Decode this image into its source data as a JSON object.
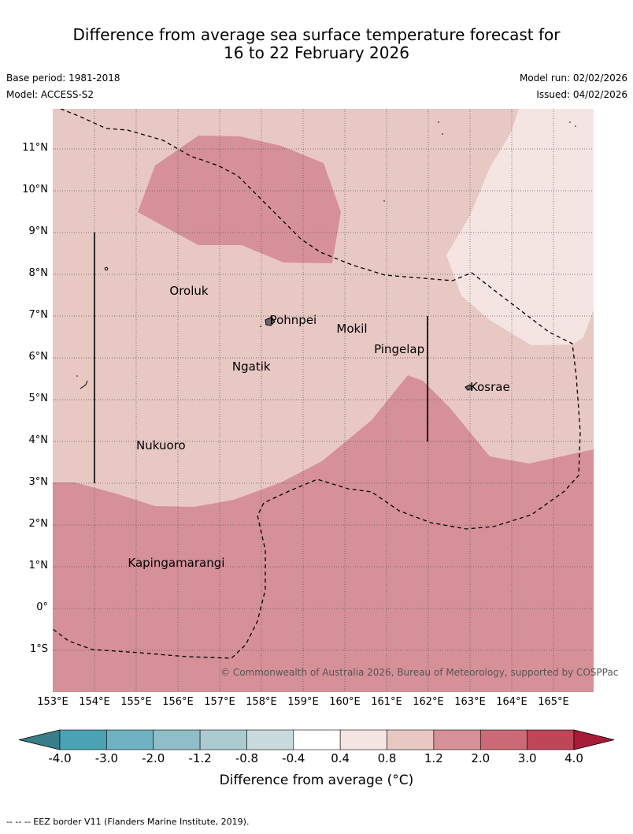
{
  "title_line1": "Difference from average sea surface temperature forecast for",
  "title_line2": "16 to 22 February 2026",
  "meta": {
    "base_period": "Base period: 1981-2018",
    "model": "Model: ACCESS-S2",
    "model_run": "Model run: 02/02/2026",
    "issued": "Issued: 04/02/2026"
  },
  "map": {
    "lat_labels": [
      "11°N",
      "10°N",
      "9°N",
      "8°N",
      "7°N",
      "6°N",
      "5°N",
      "4°N",
      "3°N",
      "2°N",
      "1°N",
      "0°",
      "1°S"
    ],
    "lon_labels": [
      "153°E",
      "154°E",
      "155°E",
      "156°E",
      "157°E",
      "158°E",
      "159°E",
      "160°E",
      "161°E",
      "162°E",
      "163°E",
      "164°E",
      "165°E"
    ],
    "places": [
      {
        "name": "Oroluk",
        "lon": 155.8,
        "lat": 7.6
      },
      {
        "name": "Pohnpei",
        "lon": 158.2,
        "lat": 6.9
      },
      {
        "name": "Mokil",
        "lon": 159.8,
        "lat": 6.7
      },
      {
        "name": "Pingelap",
        "lon": 160.7,
        "lat": 6.2
      },
      {
        "name": "Ngatik",
        "lon": 157.3,
        "lat": 5.8
      },
      {
        "name": "Kosrae",
        "lon": 163.0,
        "lat": 5.3
      },
      {
        "name": "Nukuoro",
        "lon": 155.0,
        "lat": 3.9
      },
      {
        "name": "Kapingamarangi",
        "lon": 154.8,
        "lat": 1.1
      }
    ],
    "copyright": "© Commonwealth of Australia 2026, Bureau of Meteorology, supported by COSPPac"
  },
  "colorbar": {
    "labels": [
      "-4.0",
      "-3.0",
      "-2.0",
      "-1.2",
      "-0.8",
      "-0.4",
      "0.4",
      "0.8",
      "1.2",
      "2.0",
      "3.0",
      "4.0"
    ],
    "colors": [
      "#4aa3b5",
      "#6fb2c2",
      "#8fbdc8",
      "#aacbd0",
      "#c9dbdf",
      "#ffffff",
      "#f4e5e3",
      "#e8c8c3",
      "#d69098",
      "#cb6a76",
      "#be4657"
    ],
    "low_color": "#3a7d8a",
    "high_color": "#a81c3a",
    "title": "Difference from average (°C)"
  },
  "footnote": "--  --  -- EEZ border V11 (Flanders Marine Institute, 2019)."
}
